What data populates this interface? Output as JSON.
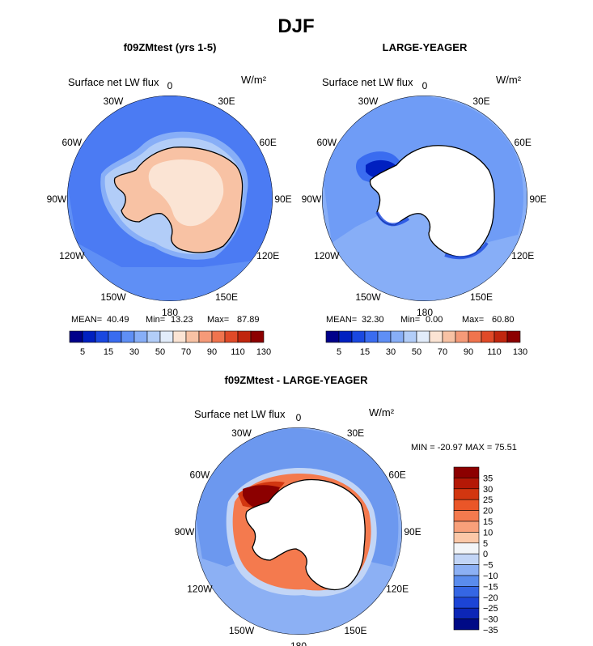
{
  "main_title": "DJF",
  "chart_data": [
    {
      "type": "polar-contour-map",
      "title": "f09ZMtest (yrs 1-5)",
      "variable": "Surface net LW flux",
      "units": "W/m²",
      "stats": {
        "mean_label": "MEAN=",
        "mean": "40.49",
        "min_label": "Min=",
        "min": "13.23",
        "max_label": "Max=",
        "max": "87.89"
      },
      "longitude_labels": [
        "0",
        "30E",
        "60E",
        "90E",
        "120E",
        "150E",
        "180",
        "150W",
        "120W",
        "90W",
        "60W",
        "30W"
      ],
      "colorbar_ticks": [
        "5",
        "15",
        "30",
        "50",
        "70",
        "90",
        "110",
        "130"
      ]
    },
    {
      "type": "polar-contour-map",
      "title": "LARGE-YEAGER",
      "variable": "Surface net LW flux",
      "units": "W/m²",
      "stats": {
        "mean_label": "MEAN=",
        "mean": "32.30",
        "min_label": "Min=",
        "min": "0.00",
        "max_label": "Max=",
        "max": "60.80"
      },
      "longitude_labels": [
        "0",
        "30E",
        "60E",
        "90E",
        "120E",
        "150E",
        "180",
        "150W",
        "120W",
        "90W",
        "60W",
        "30W"
      ],
      "colorbar_ticks": [
        "5",
        "15",
        "30",
        "50",
        "70",
        "90",
        "110",
        "130"
      ]
    },
    {
      "type": "polar-contour-map",
      "title": "f09ZMtest - LARGE-YEAGER",
      "variable": "Surface net LW flux",
      "units": "W/m²",
      "minmax_text": "MIN = -20.97 MAX =  75.51",
      "longitude_labels": [
        "0",
        "30E",
        "60E",
        "90E",
        "120E",
        "150E",
        "180",
        "150W",
        "120W",
        "90W",
        "60W",
        "30W"
      ],
      "colorbar_ticks": [
        "35",
        "30",
        "25",
        "20",
        "15",
        "10",
        "5",
        "0",
        "−5",
        "−10",
        "−15",
        "−20",
        "−25",
        "−30",
        "−35"
      ]
    }
  ],
  "palettes": {
    "abs": [
      "#00008a",
      "#0020c0",
      "#1a48e0",
      "#3a6cf0",
      "#5f8ff5",
      "#87aef7",
      "#b2cdf8",
      "#e2ecfa",
      "#fbe4d4",
      "#f8c2a4",
      "#f59a78",
      "#f0744e",
      "#e04a28",
      "#c0260e",
      "#8c0000"
    ],
    "diff": [
      "#8c0000",
      "#b41806",
      "#d23610",
      "#ea5628",
      "#f47a4e",
      "#f8a07a",
      "#fbc8a8",
      "#f2f5f8",
      "#c2d5f6",
      "#8cb0f4",
      "#5a8ced",
      "#3566e4",
      "#1c44d6",
      "#0c26b6",
      "#000a86"
    ]
  }
}
